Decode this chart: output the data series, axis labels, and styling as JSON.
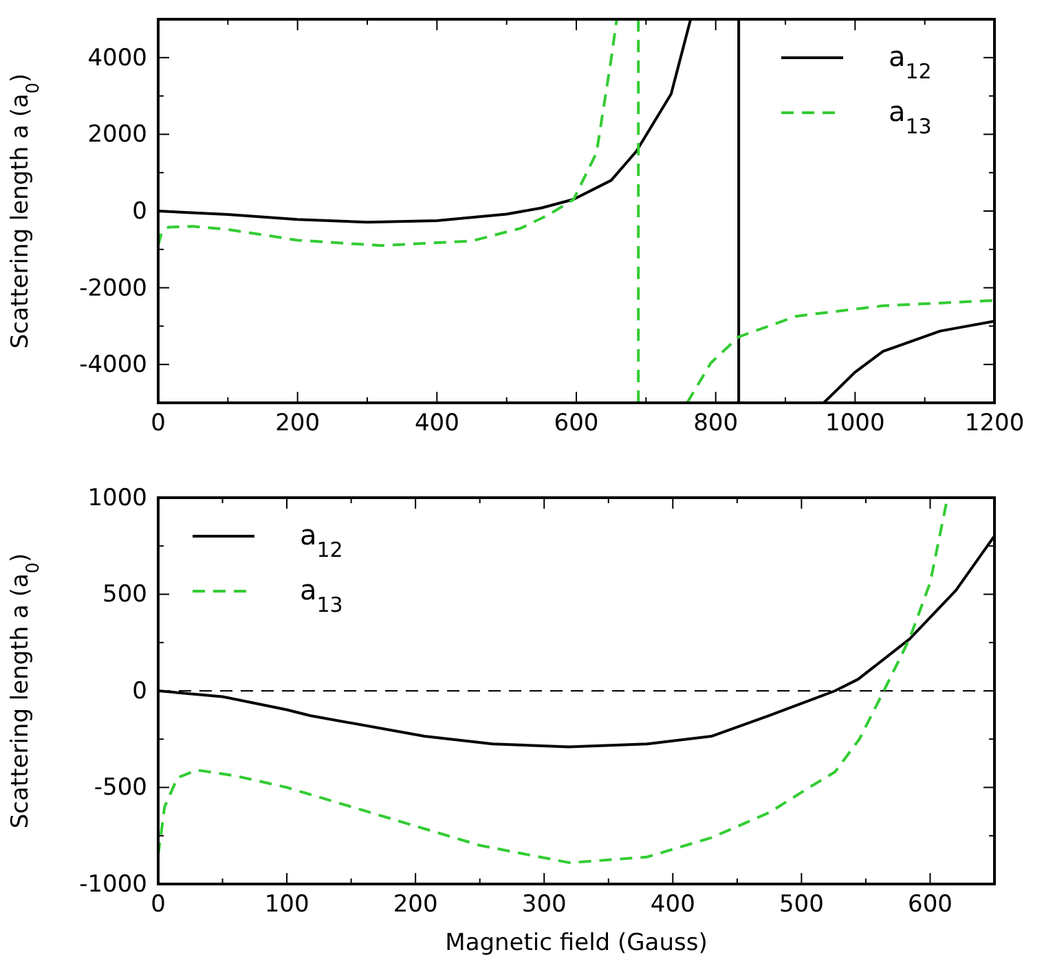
{
  "chart_data": [
    {
      "type": "line",
      "ylabel": "Scattering length a (a$_{0}$)",
      "xlim": [
        0,
        1200
      ],
      "ylim": [
        -5000,
        5000
      ],
      "xticks": [
        0,
        {
          "value": 100,
          "label": null
        },
        200,
        {
          "value": 300,
          "label": null
        },
        400,
        {
          "value": 500,
          "label": null
        },
        600,
        {
          "value": 700,
          "label": null
        },
        800,
        {
          "value": 900,
          "label": null
        },
        1000,
        {
          "value": 1100,
          "label": null
        },
        1200
      ],
      "yticks": [
        {
          "value": -5000,
          "label": null
        },
        -4000,
        {
          "value": -3000,
          "label": null
        },
        -2000,
        {
          "value": -1000,
          "label": null
        },
        0,
        {
          "value": 1000,
          "label": null
        },
        2000,
        {
          "value": 3000,
          "label": null
        },
        4000,
        {
          "value": 5000,
          "label": null
        }
      ],
      "legend": "top right",
      "grid": false,
      "series": [
        {
          "name": "a$_{12}$",
          "color": "#000000",
          "line_style": "solid",
          "x": [
            0,
            100,
            200,
            300,
            400,
            500,
            550,
            596,
            650,
            686,
            736,
            764,
            800,
            833,
            833,
            900,
            955,
            1000,
            1040,
            1122,
            1200
          ],
          "values": [
            0,
            -90,
            -220,
            -290,
            -250,
            -80,
            80,
            305,
            800,
            1555,
            3050,
            5000,
            null,
            5000,
            -5000,
            null,
            -5000,
            -4200,
            -3660,
            -3130,
            -2870
          ]
        },
        {
          "name": "a$_{13}$",
          "color": "#33cc33",
          "line_style": "dashed",
          "x": [
            0,
            5,
            15,
            50,
            100,
            200,
            320,
            450,
            520,
            560,
            596,
            629,
            650,
            658,
            675,
            689,
            689,
            720,
            759,
            793,
            833,
            916,
            1040,
            1200
          ],
          "values": [
            -900,
            -550,
            -420,
            -400,
            -480,
            -760,
            -900,
            -780,
            -450,
            -100,
            300,
            1520,
            3960,
            5000,
            null,
            5000,
            -5000,
            null,
            -5000,
            -3960,
            -3280,
            -2740,
            -2470,
            -2330
          ]
        }
      ]
    },
    {
      "type": "line",
      "xlabel": "Magnetic field (Gauss)",
      "ylabel": "Scattering length a (a$_{0}$)",
      "xlim": [
        0,
        650
      ],
      "ylim": [
        -1000,
        1000
      ],
      "xticks": [
        0,
        {
          "value": 50,
          "label": null
        },
        100,
        {
          "value": 150,
          "label": null
        },
        200,
        {
          "value": 250,
          "label": null
        },
        300,
        {
          "value": 350,
          "label": null
        },
        400,
        {
          "value": 450,
          "label": null
        },
        500,
        {
          "value": 550,
          "label": null
        },
        600,
        {
          "value": 650,
          "label": null
        }
      ],
      "yticks": [
        -1000,
        {
          "value": -750,
          "label": null
        },
        -500,
        {
          "value": -250,
          "label": null
        },
        0,
        {
          "value": 250,
          "label": null
        },
        500,
        {
          "value": 750,
          "label": null
        },
        1000
      ],
      "legend": "top left",
      "grid": false,
      "ref_lines": [
        {
          "axis": "y",
          "value": 0,
          "color": "#000000",
          "line_style": "dashed"
        }
      ],
      "series": [
        {
          "name": "a$_{12}$",
          "color": "#000000",
          "line_style": "solid",
          "x": [
            0,
            50,
            100,
            118,
            207,
            260,
            319,
            380,
            430,
            475,
            526,
            544,
            584,
            620,
            650
          ],
          "values": [
            0,
            -30,
            -98,
            -128,
            -235,
            -275,
            -290,
            -275,
            -235,
            -128,
            0,
            60,
            268,
            520,
            802
          ]
        },
        {
          "name": "a$_{13}$",
          "color": "#33cc33",
          "line_style": "dashed",
          "x": [
            0,
            5,
            15,
            30,
            60,
            100,
            150,
            200,
            250,
            320,
            380,
            430,
            475,
            506,
            526,
            545,
            564,
            584,
            600,
            613,
            615
          ],
          "values": [
            -850,
            -600,
            -450,
            -410,
            -440,
            -500,
            -600,
            -700,
            -800,
            -890,
            -860,
            -760,
            -630,
            -500,
            -420,
            -250,
            0,
            270,
            560,
            985,
            1000
          ]
        }
      ]
    }
  ]
}
